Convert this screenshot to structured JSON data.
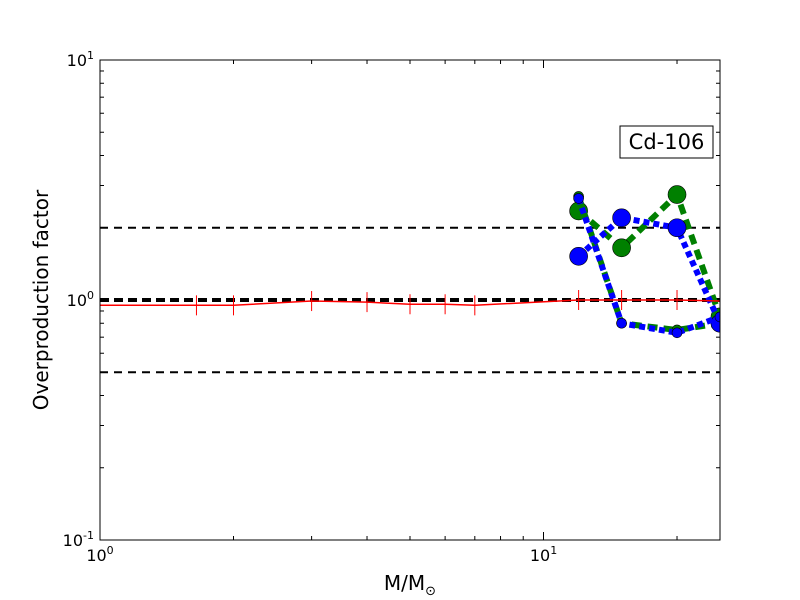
{
  "chart_data": {
    "type": "scatter",
    "title": "",
    "xlabel_main": "M/M",
    "xlabel_sub": "⊙",
    "ylabel": "Overproduction factor",
    "xscale": "log",
    "yscale": "log",
    "xlim": [
      1,
      25
    ],
    "ylim": [
      0.1,
      10
    ],
    "x_tick_labels": [
      {
        "value": 1,
        "base": "10",
        "exp": "0"
      },
      {
        "value": 10,
        "base": "10",
        "exp": "1"
      }
    ],
    "y_tick_labels": [
      {
        "value": 0.1,
        "base": "10",
        "exp": "-1"
      },
      {
        "value": 1,
        "base": "10",
        "exp": "0"
      },
      {
        "value": 10,
        "base": "10",
        "exp": "1"
      }
    ],
    "annotation": "Cd-106",
    "reference_lines": [
      {
        "y": 2.0,
        "width": 2
      },
      {
        "y": 1.0,
        "width": 4
      },
      {
        "y": 0.5,
        "width": 2
      }
    ],
    "series": [
      {
        "color": "#ff0000",
        "style": "solid",
        "x": [
          1.0,
          1.65,
          2.0,
          3.0,
          4.0,
          5.0,
          6.0,
          7.0,
          12.0,
          15.0,
          20.0,
          25.0
        ],
        "values": [
          0.95,
          0.95,
          0.95,
          0.99,
          0.98,
          0.96,
          0.96,
          0.95,
          1.0,
          1.0,
          1.0,
          0.99
        ]
      },
      {
        "color": "#008000",
        "style": "dashed",
        "markers": "circle-large",
        "x": [
          12.0,
          15.0,
          20.0,
          25.0
        ],
        "values": [
          2.35,
          1.65,
          2.75,
          0.85
        ]
      },
      {
        "color": "#008000",
        "style": "dashed",
        "markers": "circle-small",
        "x": [
          12.0,
          15.0,
          20.0,
          25.0
        ],
        "values": [
          2.7,
          0.8,
          0.75,
          0.8
        ]
      },
      {
        "color": "#0000ff",
        "style": "dotted",
        "markers": "circle-large",
        "x": [
          12.0,
          15.0,
          20.0,
          25.0
        ],
        "values": [
          1.52,
          2.2,
          2.0,
          0.8
        ]
      },
      {
        "color": "#0000ff",
        "style": "dotted",
        "markers": "circle-small",
        "x": [
          12.0,
          15.0,
          20.0,
          25.0
        ],
        "values": [
          2.65,
          0.8,
          0.73,
          0.85
        ]
      }
    ]
  }
}
